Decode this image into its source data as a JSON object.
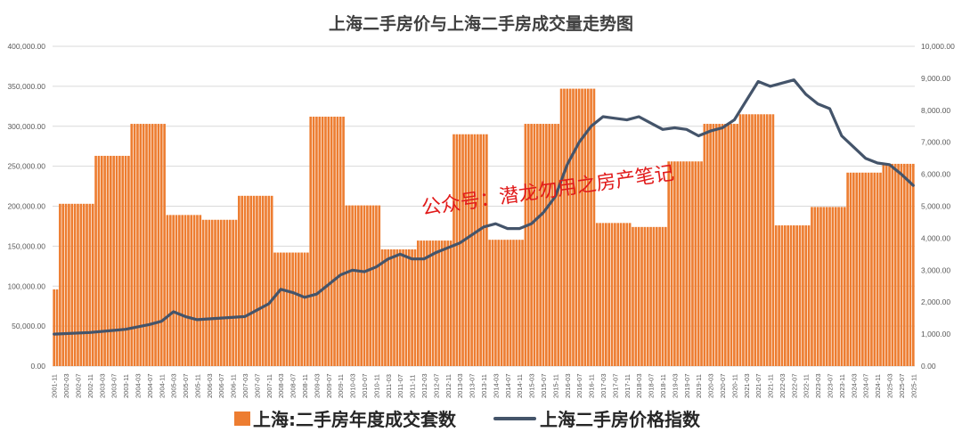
{
  "chart_data": {
    "type": "bar+line",
    "title": "上海二手房价与上海二手房成交量走势图",
    "watermark": "公众号：潜龙勿用之房产笔记",
    "left_axis": {
      "min": 0,
      "max": 400000,
      "ticks": [
        "0.00",
        "50,000.00",
        "100,000.00",
        "150,000.00",
        "200,000.00",
        "250,000.00",
        "300,000.00",
        "350,000.00",
        "400,000.00"
      ]
    },
    "right_axis": {
      "min": 0,
      "max": 10000,
      "ticks": [
        "0.00",
        "1,000.00",
        "2,000.00",
        "3,000.00",
        "4,000.00",
        "5,000.00",
        "6,000.00",
        "7,000.00",
        "8,000.00",
        "9,000.00",
        "10,000.00"
      ]
    },
    "x_labels": [
      "2001-11",
      "2002-03",
      "2002-07",
      "2002-11",
      "2003-03",
      "2003-07",
      "2003-11",
      "2004-03",
      "2004-07",
      "2004-11",
      "2005-03",
      "2005-07",
      "2005-11",
      "2006-03",
      "2006-07",
      "2006-11",
      "2007-03",
      "2007-07",
      "2007-11",
      "2008-03",
      "2008-07",
      "2008-11",
      "2009-03",
      "2009-07",
      "2009-11",
      "2010-03",
      "2010-07",
      "2010-11",
      "2011-03",
      "2011-07",
      "2011-11",
      "2012-03",
      "2012-07",
      "2012-11",
      "2013-03",
      "2013-07",
      "2013-11",
      "2014-03",
      "2014-07",
      "2014-11",
      "2015-03",
      "2015-07",
      "2015-11",
      "2016-03",
      "2016-07",
      "2016-11",
      "2017-03",
      "2017-07",
      "2017-11",
      "2018-03",
      "2018-07",
      "2018-11",
      "2019-03",
      "2019-07",
      "2019-11",
      "2020-03",
      "2020-07",
      "2020-11",
      "2021-03",
      "2021-07",
      "2021-11",
      "2022-03",
      "2022-07",
      "2022-11",
      "2023-03",
      "2023-07",
      "2023-11",
      "2024-03",
      "2024-07",
      "2024-11",
      "2025-03",
      "2025-07",
      "2025-11"
    ],
    "series": [
      {
        "name": "上海:二手房年度成交套数",
        "type": "bar",
        "axis": "left",
        "color": "#ed7d31",
        "annual": [
          {
            "start": "2001-11",
            "months": 2,
            "value": 96000
          },
          {
            "start": "2002-01",
            "months": 12,
            "value": 203000
          },
          {
            "start": "2003-01",
            "months": 12,
            "value": 263000
          },
          {
            "start": "2004-01",
            "months": 12,
            "value": 303000
          },
          {
            "start": "2005-01",
            "months": 12,
            "value": 189000
          },
          {
            "start": "2006-01",
            "months": 12,
            "value": 183000
          },
          {
            "start": "2007-01",
            "months": 12,
            "value": 213000
          },
          {
            "start": "2008-01",
            "months": 12,
            "value": 142000
          },
          {
            "start": "2009-01",
            "months": 12,
            "value": 312000
          },
          {
            "start": "2010-01",
            "months": 12,
            "value": 201000
          },
          {
            "start": "2011-01",
            "months": 12,
            "value": 146000
          },
          {
            "start": "2012-01",
            "months": 12,
            "value": 157000
          },
          {
            "start": "2013-01",
            "months": 12,
            "value": 290000
          },
          {
            "start": "2014-01",
            "months": 12,
            "value": 158000
          },
          {
            "start": "2015-01",
            "months": 12,
            "value": 303000
          },
          {
            "start": "2016-01",
            "months": 12,
            "value": 347000
          },
          {
            "start": "2017-01",
            "months": 12,
            "value": 179000
          },
          {
            "start": "2018-01",
            "months": 12,
            "value": 174000
          },
          {
            "start": "2019-01",
            "months": 12,
            "value": 256000
          },
          {
            "start": "2020-01",
            "months": 12,
            "value": 303000
          },
          {
            "start": "2021-01",
            "months": 12,
            "value": 315000
          },
          {
            "start": "2022-01",
            "months": 12,
            "value": 176000
          },
          {
            "start": "2023-01",
            "months": 12,
            "value": 199000
          },
          {
            "start": "2024-01",
            "months": 12,
            "value": 242000
          },
          {
            "start": "2025-01",
            "months": 11,
            "value": 253000
          }
        ]
      },
      {
        "name": "上海二手房价格指数",
        "type": "line",
        "axis": "right",
        "color": "#44546a",
        "points": [
          [
            "2001-11",
            1000
          ],
          [
            "2002-11",
            1050
          ],
          [
            "2003-11",
            1150
          ],
          [
            "2004-07",
            1300
          ],
          [
            "2004-11",
            1400
          ],
          [
            "2005-03",
            1700
          ],
          [
            "2005-07",
            1550
          ],
          [
            "2005-11",
            1450
          ],
          [
            "2006-07",
            1500
          ],
          [
            "2007-03",
            1550
          ],
          [
            "2007-07",
            1750
          ],
          [
            "2007-11",
            1950
          ],
          [
            "2008-03",
            2400
          ],
          [
            "2008-07",
            2300
          ],
          [
            "2008-11",
            2150
          ],
          [
            "2009-03",
            2250
          ],
          [
            "2009-07",
            2550
          ],
          [
            "2009-11",
            2850
          ],
          [
            "2010-03",
            3000
          ],
          [
            "2010-07",
            2950
          ],
          [
            "2010-11",
            3100
          ],
          [
            "2011-03",
            3350
          ],
          [
            "2011-07",
            3500
          ],
          [
            "2011-11",
            3350
          ],
          [
            "2012-03",
            3350
          ],
          [
            "2012-07",
            3550
          ],
          [
            "2012-11",
            3700
          ],
          [
            "2013-03",
            3850
          ],
          [
            "2013-07",
            4100
          ],
          [
            "2013-11",
            4350
          ],
          [
            "2014-03",
            4450
          ],
          [
            "2014-07",
            4300
          ],
          [
            "2014-11",
            4300
          ],
          [
            "2015-03",
            4450
          ],
          [
            "2015-07",
            4800
          ],
          [
            "2015-11",
            5300
          ],
          [
            "2016-03",
            6300
          ],
          [
            "2016-07",
            7000
          ],
          [
            "2016-11",
            7500
          ],
          [
            "2017-03",
            7800
          ],
          [
            "2017-07",
            7750
          ],
          [
            "2017-11",
            7700
          ],
          [
            "2018-03",
            7800
          ],
          [
            "2018-07",
            7600
          ],
          [
            "2018-11",
            7400
          ],
          [
            "2019-03",
            7450
          ],
          [
            "2019-07",
            7400
          ],
          [
            "2019-11",
            7200
          ],
          [
            "2020-03",
            7350
          ],
          [
            "2020-07",
            7450
          ],
          [
            "2020-11",
            7700
          ],
          [
            "2021-03",
            8300
          ],
          [
            "2021-07",
            8900
          ],
          [
            "2021-11",
            8750
          ],
          [
            "2022-03",
            8850
          ],
          [
            "2022-07",
            8950
          ],
          [
            "2022-11",
            8500
          ],
          [
            "2023-03",
            8200
          ],
          [
            "2023-07",
            8050
          ],
          [
            "2023-11",
            7200
          ],
          [
            "2024-03",
            6850
          ],
          [
            "2024-07",
            6500
          ],
          [
            "2024-11",
            6350
          ],
          [
            "2025-03",
            6300
          ],
          [
            "2025-07",
            6000
          ],
          [
            "2025-11",
            5650
          ]
        ]
      }
    ],
    "grid": true,
    "legend_position": "bottom"
  }
}
